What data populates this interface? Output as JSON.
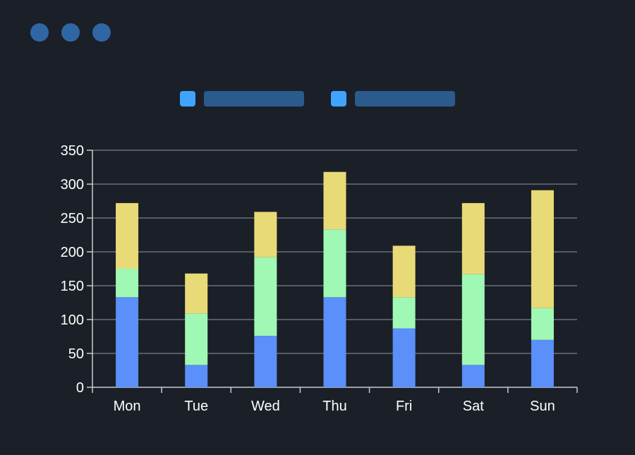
{
  "window": {
    "controls": [
      {
        "name": "window-dot-1",
        "color": "#2f67a5"
      },
      {
        "name": "window-dot-2",
        "color": "#2f67a5"
      },
      {
        "name": "window-dot-3",
        "color": "#2f67a5"
      }
    ]
  },
  "legend": {
    "swatch_color": "#3fa4ff",
    "placeholder_color": "#2b5b8d",
    "items_count_shown": 2
  },
  "chart_data": {
    "type": "bar",
    "stacked": true,
    "categories": [
      "Mon",
      "Tue",
      "Wed",
      "Thu",
      "Fri",
      "Sat",
      "Sun"
    ],
    "series": [
      {
        "color": "#5b8ff9",
        "values": [
          133,
          33,
          76,
          133,
          87,
          33,
          70
        ]
      },
      {
        "color": "#9ff8b4",
        "values": [
          42,
          76,
          116,
          100,
          46,
          134,
          47
        ]
      },
      {
        "color": "#e8da76",
        "values": [
          97,
          59,
          67,
          85,
          76,
          105,
          174
        ]
      }
    ],
    "ylim": [
      0,
      350
    ],
    "yticks": [
      0,
      50,
      100,
      150,
      200,
      250,
      300,
      350
    ],
    "grid": true,
    "legend_position": "top"
  }
}
